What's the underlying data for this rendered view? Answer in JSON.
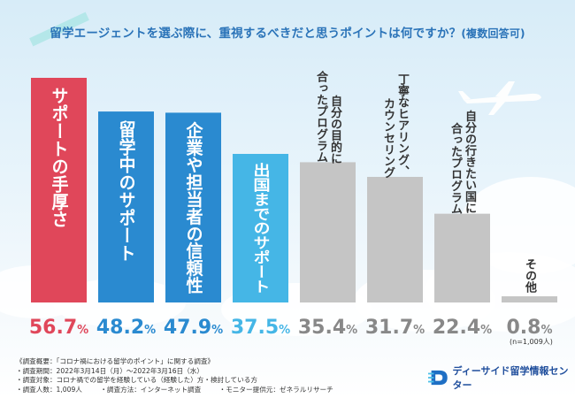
{
  "title": "留学エージェントを選ぶ際に、重視するべきだと思うポイントは何ですか？",
  "title_note": "(複数回答可)",
  "chart_data": {
    "type": "bar",
    "title": "留学エージェントを選ぶ際に、重視するべきだと思うポイントは何ですか？(複数回答可)",
    "categories": [
      "サポートの手厚さ",
      "留学中のサポート",
      "企業や担当者の信頼性",
      "出国までのサポート",
      "自分の目的に合ったプログラム",
      "丁寧なヒアリング、カウンセリング",
      "自分の行きたい国に合ったプログラム",
      "その他"
    ],
    "category_lines": [
      [
        "サポートの手厚さ"
      ],
      [
        "留学中のサポート"
      ],
      [
        "企業や担当者の信頼性"
      ],
      [
        "出国までのサポート"
      ],
      [
        "自分の目的に",
        "合ったプログラム"
      ],
      [
        "丁寧なヒアリング、",
        "カウンセリング"
      ],
      [
        "自分の行きたい国に",
        "合ったプログラム"
      ],
      [
        "その他"
      ]
    ],
    "values": [
      56.7,
      48.2,
      47.9,
      37.5,
      35.4,
      31.7,
      22.4,
      0.8
    ],
    "value_labels": [
      "56.7%",
      "48.2%",
      "47.9%",
      "37.5%",
      "35.4%",
      "31.7%",
      "22.4%",
      "0.8%"
    ],
    "unit": "%",
    "ylim": [
      0,
      56.7
    ],
    "xlabel": "",
    "ylabel": "",
    "colors": [
      "#e0475a",
      "#2a8ad0",
      "#2a8ad0",
      "#45b6e6",
      "#c5c5c5",
      "#c5c5c5",
      "#c5c5c5",
      "#c5c5c5"
    ],
    "value_colors": [
      "#e0475a",
      "#2a8ad0",
      "#2a8ad0",
      "#45b6e6",
      "#888888",
      "#888888",
      "#888888",
      "#888888"
    ],
    "sample_note": "(n=1,009人)"
  },
  "footer": {
    "line1": "《調査概要：「コロナ禍における留学のポイント」に関する調査》",
    "line2": "・調査期間：2022年3月14日（月）～2022年3月16日（水）",
    "line3": "・調査対象：コロナ禍での留学を経験している（経験した）方・検討している方",
    "line4a": "・調査人数：1,009人",
    "line4b": "・調査方法：インターネット調査",
    "line4c": "・モニター提供元：ゼネラルリサーチ"
  },
  "brand": {
    "name": "ディーサイド留学情報センター"
  }
}
